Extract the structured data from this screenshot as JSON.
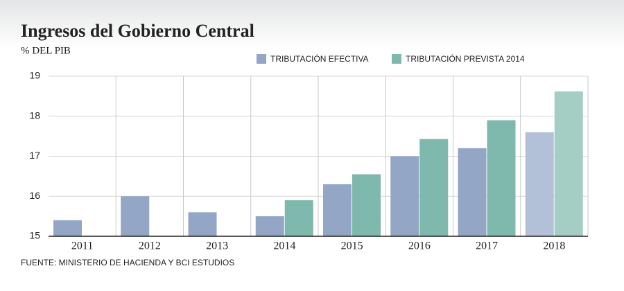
{
  "chart_data": {
    "type": "bar",
    "title": "Ingresos del Gobierno Central",
    "subtitle": "% DEL PIB",
    "source": "FUENTE: MINISTERIO DE HACIENDA Y BCI ESTUDIOS",
    "categories": [
      "2011",
      "2012",
      "2013",
      "2014",
      "2015",
      "2016",
      "2017",
      "2018"
    ],
    "series": [
      {
        "name": "TRIBUTACIÓN EFECTIVA",
        "color": "#93a6c6",
        "colors": [
          "#93a6c6",
          "#93a6c6",
          "#93a6c6",
          "#93a6c6",
          "#93a6c6",
          "#93a6c6",
          "#93a6c6",
          "#b3c1d8"
        ],
        "values": [
          15.4,
          16.0,
          15.6,
          15.5,
          16.3,
          17.0,
          17.2,
          17.6
        ]
      },
      {
        "name": "TRIBUTACIÓN PREVISTA 2014",
        "color": "#7fb8ad",
        "colors": [
          "#7fb8ad",
          "#7fb8ad",
          "#7fb8ad",
          "#7fb8ad",
          "#7fb8ad",
          "#7fb8ad",
          "#7fb8ad",
          "#a4cdc4"
        ],
        "values": [
          null,
          null,
          null,
          15.9,
          16.55,
          17.43,
          17.9,
          18.62
        ]
      }
    ],
    "ylim": [
      15,
      19
    ],
    "yticks": [
      15,
      16,
      17,
      18,
      19
    ],
    "grid": true
  }
}
